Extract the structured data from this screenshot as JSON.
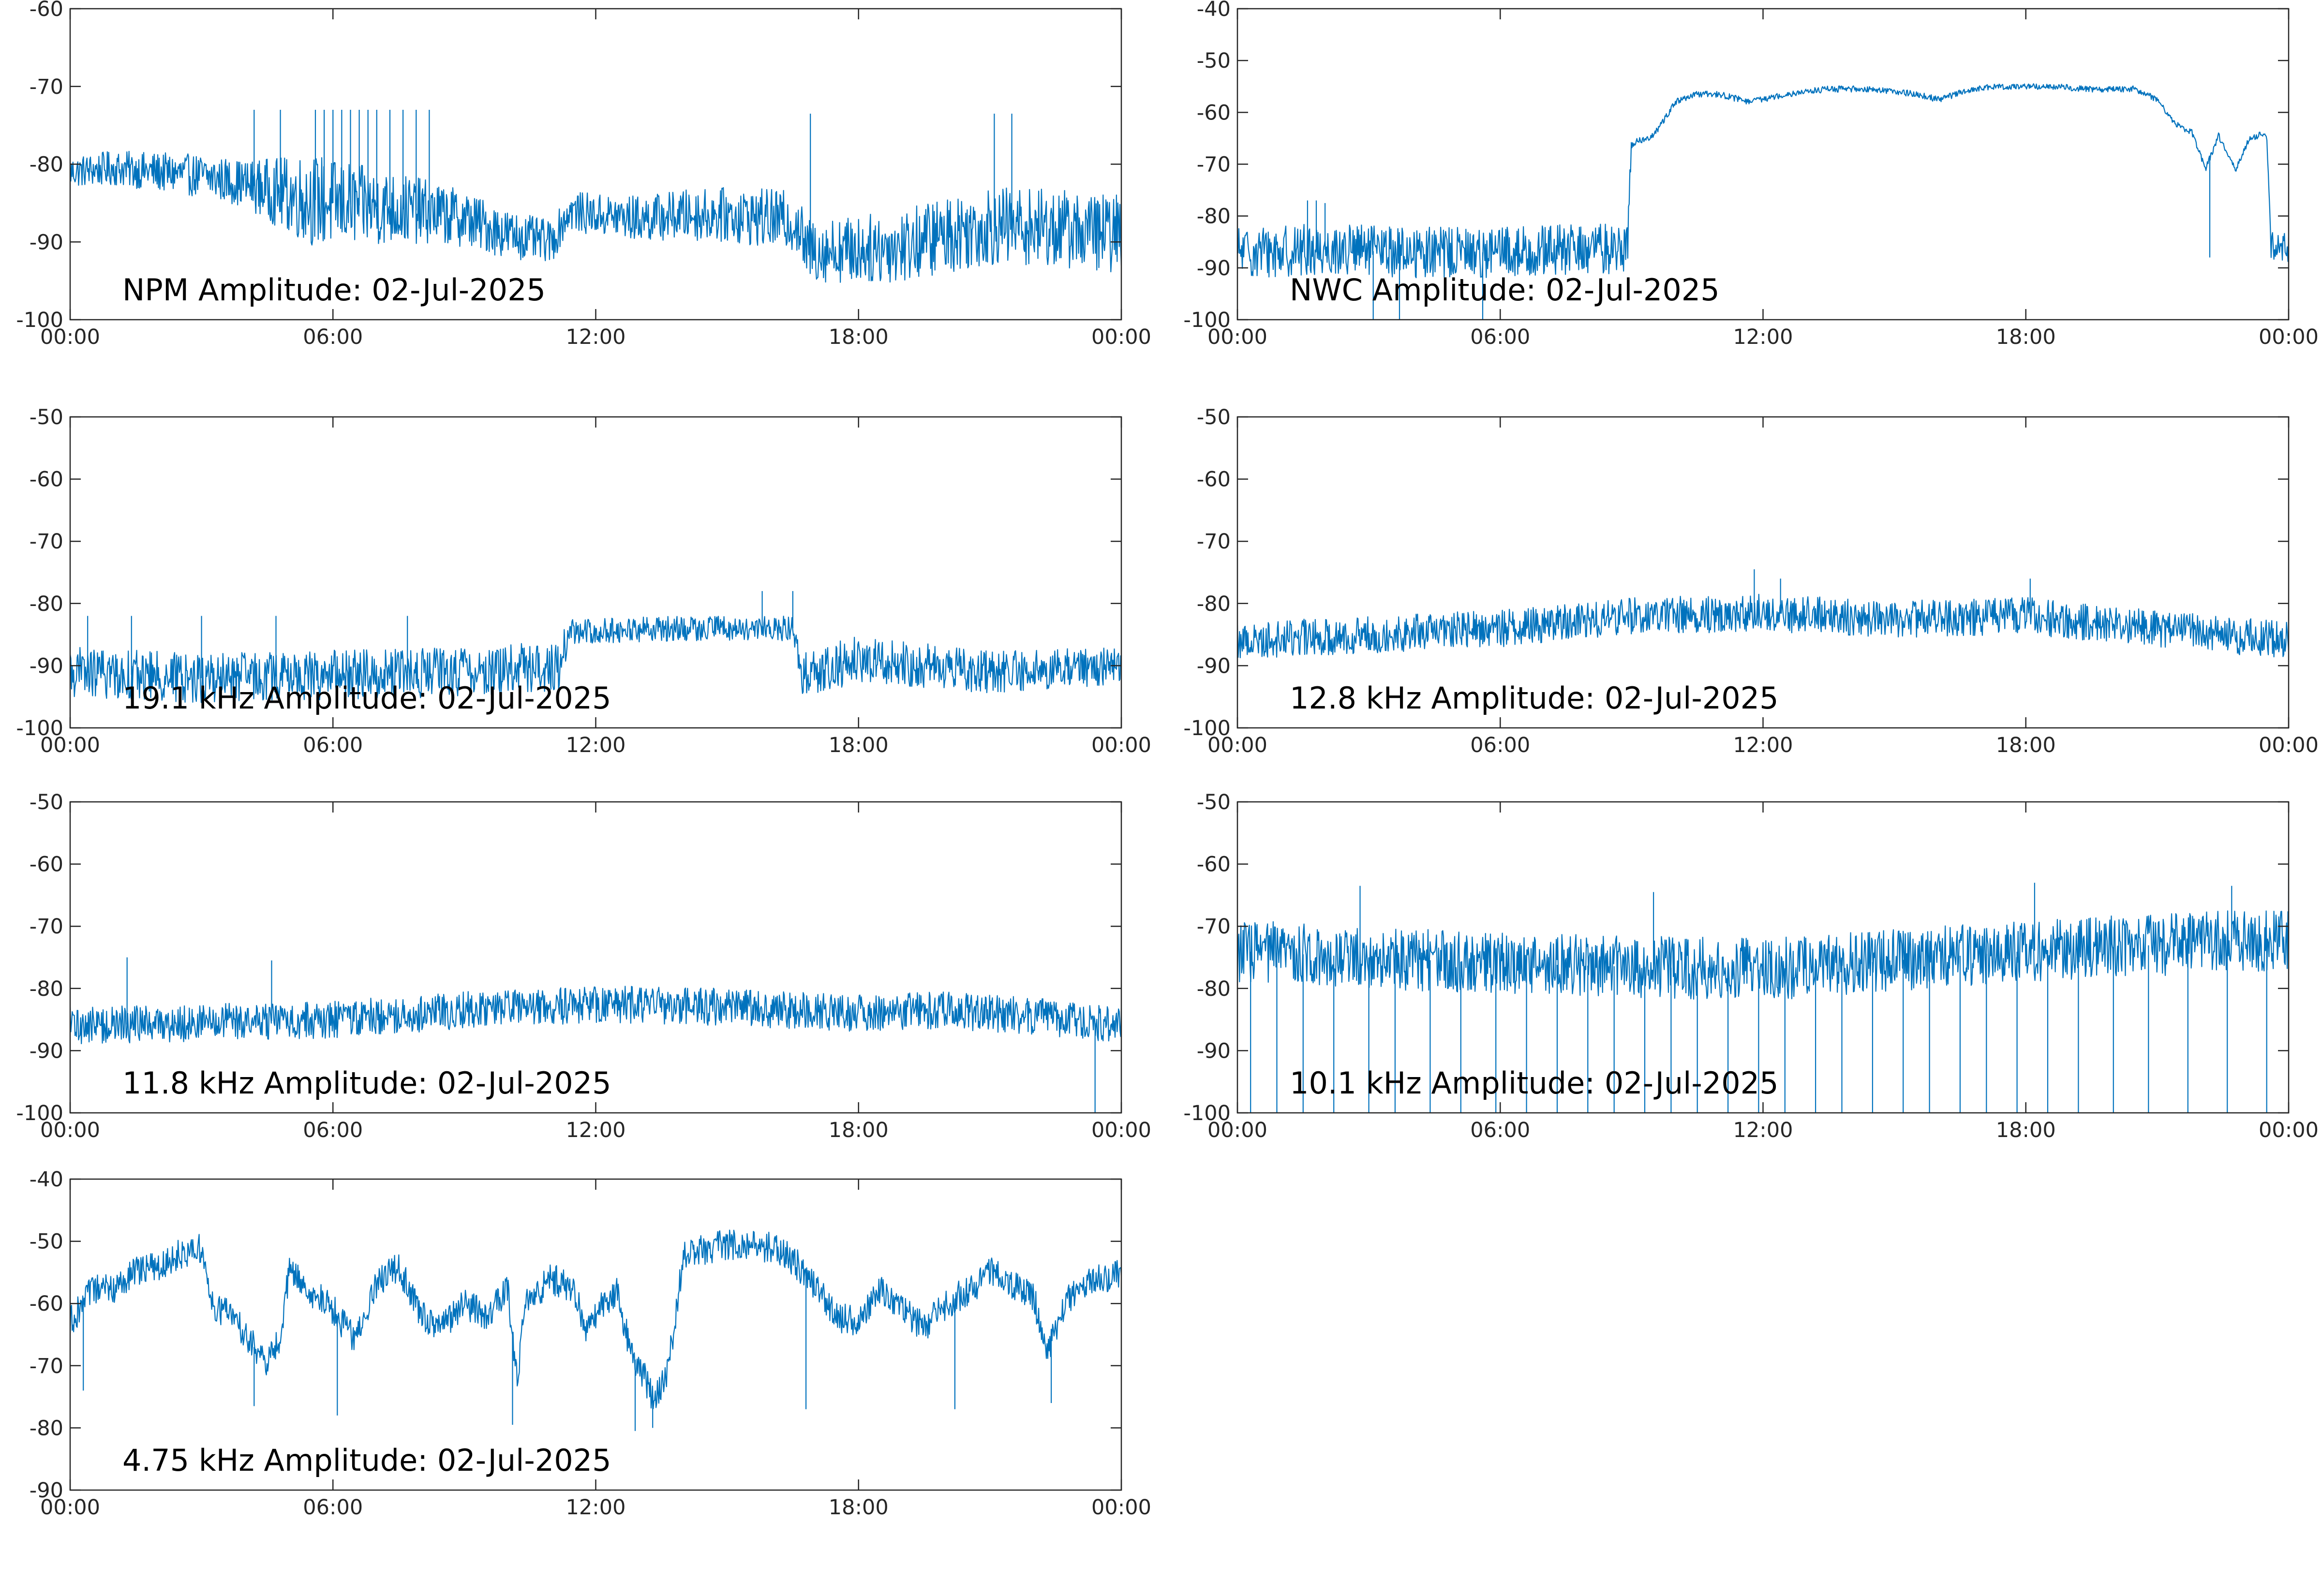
{
  "figure": {
    "line_color": "#0072BD"
  },
  "chart_data": [
    {
      "type": "line",
      "title": "NPM Amplitude: 02-Jul-2025",
      "xlim": [
        "00:00",
        "24:00"
      ],
      "xticks": [
        "00:00",
        "06:00",
        "12:00",
        "18:00",
        "00:00"
      ],
      "ylim": [
        -100,
        -60
      ],
      "yticks": [
        "-60",
        "-70",
        "-80",
        "-90",
        "-100"
      ],
      "grid": false,
      "x_unit": "hour",
      "anchors": [
        [
          0,
          -81
        ],
        [
          1,
          -80.5
        ],
        [
          2,
          -81
        ],
        [
          3,
          -81.5
        ],
        [
          4,
          -82.5
        ],
        [
          5,
          -84
        ],
        [
          6,
          -85
        ],
        [
          7,
          -85.5
        ],
        [
          8,
          -86
        ],
        [
          9,
          -87
        ],
        [
          10,
          -89
        ],
        [
          11,
          -90
        ],
        [
          11.4,
          -86
        ],
        [
          12,
          -86.5
        ],
        [
          13,
          -87
        ],
        [
          14,
          -86.5
        ],
        [
          15,
          -86.5
        ],
        [
          16,
          -87
        ],
        [
          16.6,
          -87.5
        ],
        [
          16.8,
          -91
        ],
        [
          18,
          -91
        ],
        [
          19,
          -90.5
        ],
        [
          20,
          -89
        ],
        [
          21,
          -88
        ],
        [
          22,
          -88
        ],
        [
          23,
          -88.5
        ],
        [
          24,
          -89
        ]
      ],
      "noise": [
        [
          0,
          2
        ],
        [
          4,
          3
        ],
        [
          5.5,
          6
        ],
        [
          8.3,
          4
        ],
        [
          11.3,
          2.5
        ],
        [
          16.7,
          4
        ],
        [
          20,
          5
        ],
        [
          24,
          5
        ]
      ],
      "spikes": [
        [
          4.2,
          -73
        ],
        [
          4.8,
          -73
        ],
        [
          5.6,
          -73
        ],
        [
          5.8,
          -73
        ],
        [
          6.0,
          -73
        ],
        [
          6.2,
          -73
        ],
        [
          6.4,
          -73
        ],
        [
          6.6,
          -73
        ],
        [
          6.8,
          -73
        ],
        [
          7.0,
          -73
        ],
        [
          7.3,
          -73
        ],
        [
          7.6,
          -73
        ],
        [
          7.9,
          -73
        ],
        [
          8.2,
          -73
        ],
        [
          16.9,
          -73.5
        ],
        [
          21.1,
          -73.5
        ],
        [
          21.5,
          -73.5
        ]
      ]
    },
    {
      "type": "line",
      "title": "NWC Amplitude: 02-Jul-2025",
      "xlim": [
        "00:00",
        "24:00"
      ],
      "xticks": [
        "00:00",
        "06:00",
        "12:00",
        "18:00",
        "00:00"
      ],
      "ylim": [
        -100,
        -40
      ],
      "yticks": [
        "-40",
        "-50",
        "-60",
        "-70",
        "-80",
        "-90",
        "-100"
      ],
      "grid": false,
      "x_unit": "hour",
      "anchors": [
        [
          0,
          -87
        ],
        [
          2,
          -86.5
        ],
        [
          4,
          -87
        ],
        [
          6,
          -87
        ],
        [
          8,
          -86.5
        ],
        [
          8.9,
          -86
        ],
        [
          9.0,
          -66
        ],
        [
          9.5,
          -64.5
        ],
        [
          10,
          -58
        ],
        [
          10.5,
          -56.5
        ],
        [
          11,
          -56.5
        ],
        [
          11.7,
          -58
        ],
        [
          12.5,
          -56.5
        ],
        [
          13.5,
          -55.5
        ],
        [
          14.5,
          -55.5
        ],
        [
          15.5,
          -56.5
        ],
        [
          16,
          -57.5
        ],
        [
          16.8,
          -55.5
        ],
        [
          17.5,
          -55
        ],
        [
          18.5,
          -55
        ],
        [
          19.5,
          -55.5
        ],
        [
          20.5,
          -55.5
        ],
        [
          21,
          -57.5
        ],
        [
          21.4,
          -62
        ],
        [
          21.8,
          -64
        ],
        [
          22.1,
          -71
        ],
        [
          22.4,
          -64.5
        ],
        [
          22.8,
          -71
        ],
        [
          23.1,
          -65
        ],
        [
          23.5,
          -64
        ],
        [
          23.6,
          -86
        ],
        [
          24,
          -86
        ]
      ],
      "noise": [
        [
          0,
          5
        ],
        [
          8.95,
          5
        ],
        [
          9.05,
          0.6
        ],
        [
          23.55,
          0.6
        ],
        [
          23.6,
          3
        ],
        [
          24,
          3
        ]
      ],
      "spikes": [
        [
          1.6,
          -77
        ],
        [
          1.8,
          -77
        ],
        [
          2.0,
          -77.5
        ],
        [
          3.1,
          -100
        ],
        [
          3.7,
          -100
        ],
        [
          5.6,
          -100
        ],
        [
          22.2,
          -88
        ]
      ]
    },
    {
      "type": "line",
      "title": "19.1 kHz Amplitude: 02-Jul-2025",
      "xlim": [
        "00:00",
        "24:00"
      ],
      "xticks": [
        "00:00",
        "06:00",
        "12:00",
        "18:00",
        "00:00"
      ],
      "ylim": [
        -100,
        -50
      ],
      "yticks": [
        "-50",
        "-60",
        "-70",
        "-80",
        "-90",
        "-100"
      ],
      "grid": false,
      "x_unit": "hour",
      "anchors": [
        [
          0,
          -91
        ],
        [
          3,
          -92
        ],
        [
          6,
          -91.5
        ],
        [
          9,
          -91
        ],
        [
          11.2,
          -90
        ],
        [
          11.4,
          -84.5
        ],
        [
          14,
          -84
        ],
        [
          16.5,
          -84
        ],
        [
          16.7,
          -91
        ],
        [
          18,
          -89
        ],
        [
          21,
          -91
        ],
        [
          24,
          -90
        ]
      ],
      "noise": [
        [
          0,
          4
        ],
        [
          11.3,
          4
        ],
        [
          11.4,
          2
        ],
        [
          16.6,
          2
        ],
        [
          16.7,
          4
        ],
        [
          24,
          3
        ]
      ],
      "spikes": [
        [
          0.4,
          -82
        ],
        [
          1.4,
          -82
        ],
        [
          3.0,
          -82
        ],
        [
          4.7,
          -82
        ],
        [
          7.7,
          -82
        ],
        [
          15.8,
          -78
        ],
        [
          16.5,
          -78
        ]
      ]
    },
    {
      "type": "line",
      "title": "12.8 kHz Amplitude: 02-Jul-2025",
      "xlim": [
        "00:00",
        "24:00"
      ],
      "xticks": [
        "00:00",
        "06:00",
        "12:00",
        "18:00",
        "00:00"
      ],
      "ylim": [
        -100,
        -50
      ],
      "yticks": [
        "-50",
        "-60",
        "-70",
        "-80",
        "-90",
        "-100"
      ],
      "grid": false,
      "x_unit": "hour",
      "anchors": [
        [
          0,
          -86
        ],
        [
          3,
          -85
        ],
        [
          6,
          -84
        ],
        [
          9,
          -82
        ],
        [
          12,
          -81.5
        ],
        [
          15,
          -82.5
        ],
        [
          18,
          -82
        ],
        [
          21,
          -84
        ],
        [
          24,
          -86
        ]
      ],
      "noise": [
        [
          0,
          3
        ],
        [
          24,
          3
        ]
      ],
      "spikes": [
        [
          11.8,
          -74.5
        ],
        [
          12.4,
          -76
        ],
        [
          18.1,
          -76
        ]
      ]
    },
    {
      "type": "line",
      "title": "11.8 kHz Amplitude: 02-Jul-2025",
      "xlim": [
        "00:00",
        "24:00"
      ],
      "xticks": [
        "00:00",
        "06:00",
        "12:00",
        "18:00",
        "00:00"
      ],
      "ylim": [
        -100,
        -50
      ],
      "yticks": [
        "-50",
        "-60",
        "-70",
        "-80",
        "-90",
        "-100"
      ],
      "grid": false,
      "x_unit": "hour",
      "anchors": [
        [
          0,
          -86
        ],
        [
          3,
          -85.5
        ],
        [
          6,
          -85
        ],
        [
          9,
          -83.5
        ],
        [
          12,
          -82.5
        ],
        [
          15,
          -83
        ],
        [
          18,
          -84
        ],
        [
          20,
          -83.5
        ],
        [
          22,
          -84.5
        ],
        [
          24,
          -86
        ]
      ],
      "noise": [
        [
          0,
          3
        ],
        [
          24,
          3
        ]
      ],
      "spikes": [
        [
          1.3,
          -75
        ],
        [
          4.6,
          -75.5
        ],
        [
          23.4,
          -100
        ]
      ]
    },
    {
      "type": "line",
      "title": "10.1 kHz Amplitude: 02-Jul-2025",
      "xlim": [
        "00:00",
        "24:00"
      ],
      "xticks": [
        "00:00",
        "06:00",
        "12:00",
        "18:00",
        "00:00"
      ],
      "ylim": [
        -100,
        -50
      ],
      "yticks": [
        "-50",
        "-60",
        "-70",
        "-80",
        "-90",
        "-100"
      ],
      "grid": false,
      "x_unit": "hour",
      "anchors": [
        [
          0,
          -74
        ],
        [
          6,
          -76
        ],
        [
          12,
          -77
        ],
        [
          18,
          -74
        ],
        [
          24,
          -72
        ]
      ],
      "noise": [
        [
          0,
          5
        ],
        [
          24,
          5
        ]
      ],
      "spikes": [
        [
          0.3,
          -100
        ],
        [
          0.9,
          -100
        ],
        [
          1.5,
          -100
        ],
        [
          2.2,
          -100
        ],
        [
          3.0,
          -100
        ],
        [
          3.6,
          -100
        ],
        [
          4.4,
          -100
        ],
        [
          5.1,
          -100
        ],
        [
          5.9,
          -100
        ],
        [
          6.6,
          -100
        ],
        [
          7.3,
          -100
        ],
        [
          8.0,
          -100
        ],
        [
          8.6,
          -100
        ],
        [
          9.3,
          -100
        ],
        [
          9.9,
          -100
        ],
        [
          10.5,
          -100
        ],
        [
          11.2,
          -100
        ],
        [
          11.9,
          -100
        ],
        [
          12.5,
          -100
        ],
        [
          13.2,
          -100
        ],
        [
          13.8,
          -100
        ],
        [
          14.5,
          -100
        ],
        [
          15.2,
          -100
        ],
        [
          15.8,
          -100
        ],
        [
          16.5,
          -100
        ],
        [
          17.1,
          -100
        ],
        [
          17.8,
          -100
        ],
        [
          18.5,
          -100
        ],
        [
          19.2,
          -100
        ],
        [
          20.0,
          -100
        ],
        [
          20.8,
          -100
        ],
        [
          21.7,
          -100
        ],
        [
          22.6,
          -100
        ],
        [
          23.5,
          -100
        ],
        [
          2.8,
          -63.5
        ],
        [
          9.5,
          -64.5
        ],
        [
          18.2,
          -63
        ],
        [
          22.7,
          -63.5
        ],
        [
          24,
          -62.5
        ]
      ]
    },
    {
      "type": "line",
      "title": "4.75 kHz Amplitude: 02-Jul-2025",
      "xlim": [
        "00:00",
        "24:00"
      ],
      "xticks": [
        "00:00",
        "06:00",
        "12:00",
        "18:00",
        "00:00"
      ],
      "ylim": [
        -90,
        -40
      ],
      "yticks": [
        "-40",
        "-50",
        "-60",
        "-70",
        "-80",
        "-90"
      ],
      "grid": false,
      "x_unit": "hour",
      "anchors": [
        [
          0,
          -63
        ],
        [
          0.5,
          -58
        ],
        [
          1,
          -57.5
        ],
        [
          1.5,
          -55
        ],
        [
          2,
          -54
        ],
        [
          2.5,
          -52
        ],
        [
          3,
          -51
        ],
        [
          3.2,
          -60
        ],
        [
          3.7,
          -62
        ],
        [
          4,
          -65
        ],
        [
          4.3,
          -68
        ],
        [
          4.5,
          -70
        ],
        [
          4.8,
          -65
        ],
        [
          5,
          -55
        ],
        [
          5.5,
          -58
        ],
        [
          6,
          -61
        ],
        [
          6.5,
          -66
        ],
        [
          7,
          -57
        ],
        [
          7.5,
          -54
        ],
        [
          8,
          -62
        ],
        [
          8.5,
          -64
        ],
        [
          9,
          -60
        ],
        [
          9.5,
          -62
        ],
        [
          10,
          -58
        ],
        [
          10.2,
          -72
        ],
        [
          10.4,
          -60
        ],
        [
          11,
          -56
        ],
        [
          11.5,
          -58
        ],
        [
          11.8,
          -65
        ],
        [
          12.1,
          -60
        ],
        [
          12.5,
          -58
        ],
        [
          12.8,
          -68
        ],
        [
          13,
          -70
        ],
        [
          13.3,
          -75
        ],
        [
          13.6,
          -72
        ],
        [
          13.8,
          -64
        ],
        [
          14,
          -52
        ],
        [
          15,
          -50.5
        ],
        [
          16,
          -51
        ],
        [
          16.5,
          -53
        ],
        [
          17,
          -57
        ],
        [
          17.5,
          -62
        ],
        [
          18,
          -63
        ],
        [
          18.5,
          -58
        ],
        [
          19,
          -61
        ],
        [
          19.5,
          -64
        ],
        [
          20,
          -60
        ],
        [
          20.5,
          -58
        ],
        [
          21,
          -55
        ],
        [
          21.5,
          -57
        ],
        [
          22,
          -59
        ],
        [
          22.3,
          -68
        ],
        [
          22.6,
          -62
        ],
        [
          23,
          -57
        ],
        [
          24,
          -55
        ]
      ],
      "noise": [
        [
          0,
          2.5
        ],
        [
          24,
          2.5
        ]
      ],
      "spikes": [
        [
          0.3,
          -74
        ],
        [
          4.2,
          -76.5
        ],
        [
          6.1,
          -78
        ],
        [
          10.1,
          -79.5
        ],
        [
          12.9,
          -80.5
        ],
        [
          13.3,
          -80
        ],
        [
          16.8,
          -77
        ],
        [
          20.2,
          -77
        ],
        [
          22.4,
          -76
        ]
      ]
    }
  ]
}
